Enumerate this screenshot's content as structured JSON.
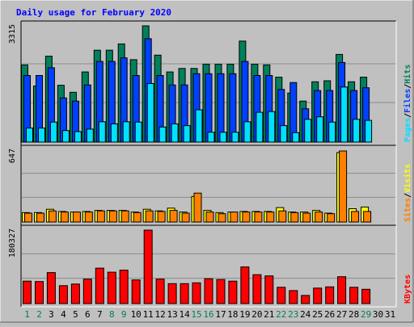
{
  "title": "Daily usage for February 2020",
  "colors": {
    "background": "#c0c0c0",
    "plot": "#c0c0c0",
    "title": "#0000ff",
    "hits": "#00805c",
    "files": "#0040ff",
    "pages": "#00e0ff",
    "visits": "#ffff00",
    "sites": "#ff8000",
    "kbytes": "#ff0000",
    "weekend_label": "#00805c",
    "weekday_label": "#000000",
    "slash": "#000000"
  },
  "chart_data": [
    {
      "type": "bar",
      "title": "Daily usage for February 2020",
      "panel": "hits-files-pages",
      "categories": [
        "1",
        "2",
        "3",
        "4",
        "5",
        "6",
        "7",
        "8",
        "9",
        "10",
        "11",
        "12",
        "13",
        "14",
        "15",
        "16",
        "17",
        "18",
        "19",
        "20",
        "21",
        "22",
        "23",
        "24",
        "25",
        "26",
        "27",
        "28",
        "29",
        "30",
        "31"
      ],
      "y_max_label": "3315",
      "ylim": [
        0,
        3315
      ],
      "legend_right": [
        "Pages",
        "/",
        "Files",
        "/",
        "Hits"
      ],
      "series": [
        {
          "name": "Hits",
          "values": [
            2200,
            1600,
            2450,
            1620,
            1420,
            2000,
            2620,
            2620,
            2800,
            2350,
            3315,
            2480,
            2000,
            2100,
            2100,
            2220,
            2220,
            2220,
            2880,
            2220,
            2200,
            1850,
            1400,
            1170,
            1720,
            1750,
            2500,
            1720,
            1850,
            0,
            0
          ]
        },
        {
          "name": "Files",
          "values": [
            1900,
            1900,
            2120,
            1260,
            1170,
            1630,
            2300,
            2300,
            2400,
            1900,
            2950,
            1900,
            1630,
            1630,
            1950,
            1950,
            1950,
            1950,
            2300,
            1900,
            1900,
            1500,
            1700,
            950,
            1470,
            1470,
            2270,
            1470,
            1550,
            0,
            0
          ]
        },
        {
          "name": "Pages",
          "values": [
            400,
            400,
            570,
            330,
            300,
            370,
            580,
            520,
            580,
            570,
            1670,
            430,
            520,
            470,
            920,
            280,
            280,
            280,
            580,
            850,
            870,
            470,
            270,
            650,
            720,
            570,
            1570,
            650,
            620,
            0,
            0
          ]
        }
      ]
    },
    {
      "type": "bar",
      "panel": "visits-sites",
      "categories": [
        "1",
        "2",
        "3",
        "4",
        "5",
        "6",
        "7",
        "8",
        "9",
        "10",
        "11",
        "12",
        "13",
        "14",
        "15",
        "16",
        "17",
        "18",
        "19",
        "20",
        "21",
        "22",
        "23",
        "24",
        "25",
        "26",
        "27",
        "28",
        "29",
        "30",
        "31"
      ],
      "y_max_label": "647",
      "ylim": [
        0,
        647
      ],
      "legend_right": [
        "Sites",
        "/",
        "Visits"
      ],
      "series": [
        {
          "name": "Visits",
          "values": [
            85,
            85,
            115,
            95,
            90,
            95,
            105,
            105,
            105,
            90,
            115,
            100,
            125,
            90,
            230,
            105,
            85,
            90,
            95,
            95,
            95,
            130,
            90,
            90,
            105,
            80,
            625,
            120,
            135,
            0,
            0
          ]
        },
        {
          "name": "Sites",
          "values": [
            80,
            80,
            100,
            90,
            90,
            90,
            100,
            100,
            100,
            85,
            100,
            95,
            105,
            80,
            260,
            90,
            75,
            90,
            90,
            90,
            90,
            100,
            85,
            80,
            90,
            75,
            640,
            95,
            95,
            0,
            0
          ]
        }
      ]
    },
    {
      "type": "bar",
      "panel": "kbytes",
      "categories": [
        "1",
        "2",
        "3",
        "4",
        "5",
        "6",
        "7",
        "8",
        "9",
        "10",
        "11",
        "12",
        "13",
        "14",
        "15",
        "16",
        "17",
        "18",
        "19",
        "20",
        "21",
        "22",
        "23",
        "24",
        "25",
        "26",
        "27",
        "28",
        "29",
        "30",
        "31"
      ],
      "y_max_label": "180327",
      "ylim": [
        0,
        180327
      ],
      "legend_right": [
        "KBytes"
      ],
      "series": [
        {
          "name": "KBytes",
          "values": [
            55000,
            54000,
            76000,
            44000,
            48000,
            60000,
            87000,
            77000,
            82000,
            58000,
            180327,
            60000,
            49000,
            49000,
            51000,
            61000,
            59000,
            55000,
            90000,
            71000,
            68000,
            40000,
            32000,
            20000,
            38000,
            41000,
            66000,
            40000,
            35000,
            0,
            0
          ]
        }
      ]
    }
  ],
  "x_labels": [
    "1",
    "2",
    "3",
    "4",
    "5",
    "6",
    "7",
    "8",
    "9",
    "10",
    "11",
    "12",
    "13",
    "14",
    "15",
    "16",
    "17",
    "18",
    "19",
    "20",
    "21",
    "22",
    "23",
    "24",
    "25",
    "26",
    "27",
    "28",
    "29",
    "30",
    "31"
  ],
  "weekend_days": [
    1,
    2,
    8,
    9,
    15,
    16,
    22,
    23,
    29
  ]
}
